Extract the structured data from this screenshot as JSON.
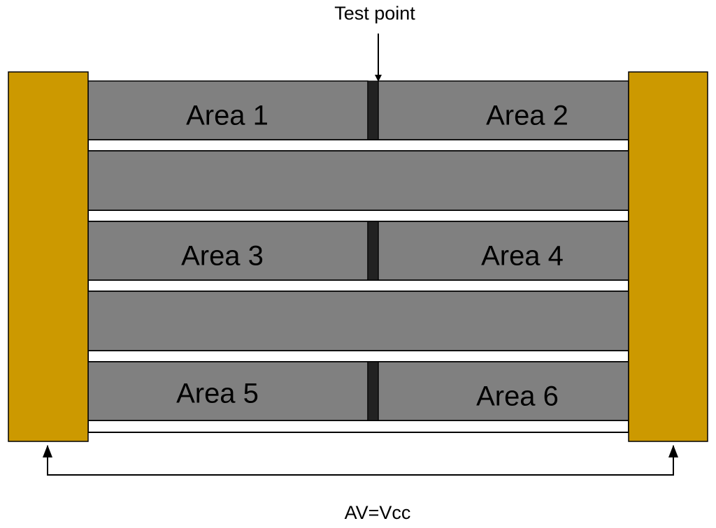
{
  "diagram": {
    "test_point_label": "Test point",
    "voltage_label": "AV=Vcc",
    "areas": [
      "Area 1",
      "Area 2",
      "Area 3",
      "Area 4",
      "Area 5",
      "Area 6"
    ]
  },
  "colors": {
    "electrode": "#CC9900",
    "strip": "#808080",
    "separator": "#222222",
    "outline": "#000000",
    "background": "#FFFFFF"
  }
}
